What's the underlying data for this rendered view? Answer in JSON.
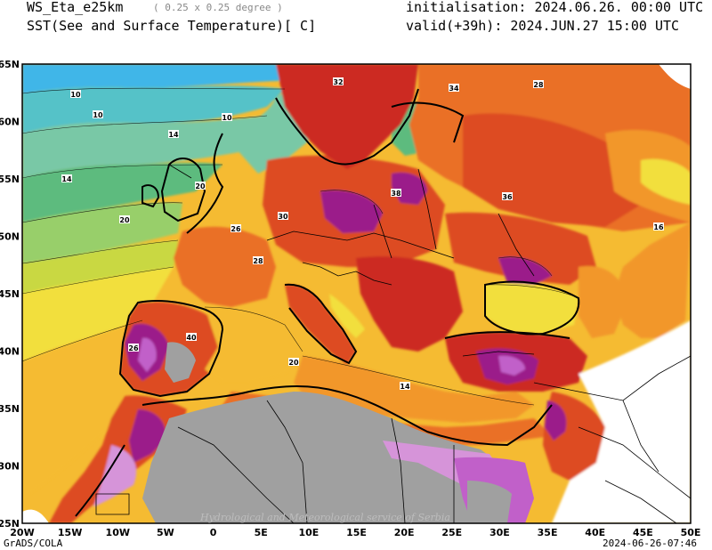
{
  "header": {
    "model": "WS_Eta_e25km",
    "resolution": "( 0.25 x 0.25 degree )",
    "variable": "SST(See and Surface Temperature)[ C]",
    "initialisation": "initialisation: 2024.06.26. 00:00 UTC",
    "valid": "valid(+39h): 2024.JUN.27 15:00 UTC"
  },
  "map": {
    "lon_ticks": [
      "20W",
      "15W",
      "10W",
      "5W",
      "0",
      "5E",
      "10E",
      "15E",
      "20E",
      "25E",
      "30E",
      "35E",
      "40E",
      "45E",
      "50E"
    ],
    "lat_ticks": [
      "25N",
      "30N",
      "35N",
      "40N",
      "45N",
      "50N",
      "55N",
      "60N",
      "65N"
    ],
    "watermark": "Hydrological and Meteorological service of Serbia",
    "contour_labels": [
      "10",
      "10",
      "10",
      "14",
      "14",
      "20",
      "20",
      "26",
      "28",
      "30",
      "32",
      "34",
      "36",
      "38",
      "40",
      "26",
      "20",
      "14",
      "16",
      "28"
    ],
    "colors": {
      "t8": "#3fb6e8",
      "t10": "#55c2c8",
      "t12": "#79c8a6",
      "t14": "#5dbb7e",
      "t16": "#98cf6a",
      "t18": "#c9d843",
      "t20": "#f2df3c",
      "t22": "#f5bb32",
      "t24": "#f2972c",
      "t26": "#ea6f26",
      "t28": "#dd4b24",
      "t30": "#cc2a22",
      "t32": "#b01e1e",
      "t34": "#9b1f8a",
      "t36": "#c160c9",
      "t38": "#d694d9",
      "nodata": "#a0a0a0"
    }
  },
  "footer": {
    "left": "GrADS/COLA",
    "right": "2024-06-26-07:46"
  }
}
